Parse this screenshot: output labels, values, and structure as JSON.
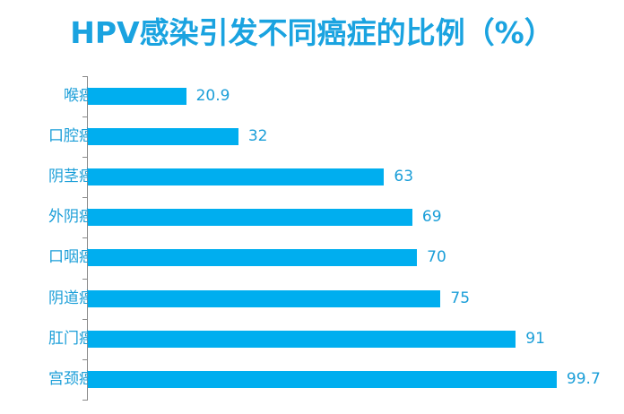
{
  "title": "HPV感染引发不同癌症的比例（%）",
  "colors": {
    "bar": "#00aeef",
    "text": "#1a9ed8",
    "title": "#1aa3e0",
    "axis": "#8a8a8a"
  },
  "chart_data": {
    "type": "bar",
    "orientation": "horizontal",
    "title": "HPV感染引发不同癌症的比例（%）",
    "xlabel": "",
    "ylabel": "",
    "categories": [
      "喉癌",
      "口腔癌",
      "阴茎癌",
      "外阴癌",
      "口咽癌",
      "阴道癌",
      "肛门癌",
      "宫颈癌"
    ],
    "values": [
      20.9,
      32,
      63,
      69,
      70,
      75,
      91,
      99.7
    ],
    "value_labels": [
      "20.9",
      "32",
      "63",
      "69",
      "70",
      "75",
      "91",
      "99.7"
    ],
    "xlim": [
      0,
      100
    ],
    "grid": false,
    "legend": false,
    "data_labels": true
  }
}
